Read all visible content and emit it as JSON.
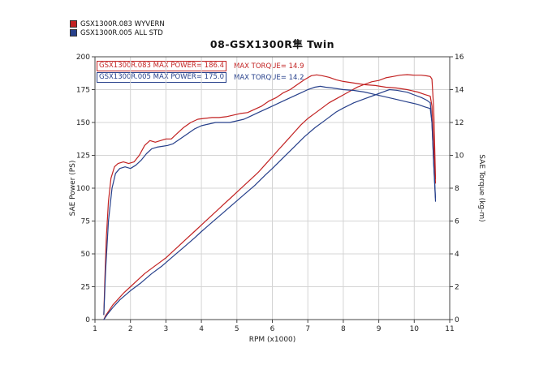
{
  "legend": {
    "position": "top-left",
    "items": [
      {
        "label": "GSX1300R.083  WYVERN",
        "color": "#c22222"
      },
      {
        "label": "GSX1300R.005  ALL STD",
        "color": "#27408b"
      }
    ]
  },
  "chart_data": {
    "type": "line",
    "title": "08-GSX1300R隼 Twin",
    "xlabel": "RPM (x1000)",
    "ylabel_left": "SAE Power (PS)",
    "ylabel_right": "SAE Torque (kg-m)",
    "xlim": [
      1,
      11
    ],
    "ylim_left": [
      0,
      200
    ],
    "ylim_right": [
      0,
      16
    ],
    "x_ticks": [
      1,
      2,
      3,
      4,
      5,
      6,
      7,
      8,
      9,
      10,
      11
    ],
    "y_ticks_left": [
      0,
      25,
      50,
      75,
      100,
      125,
      150,
      175,
      200
    ],
    "y_ticks_right": [
      0,
      2,
      4,
      6,
      8,
      10,
      12,
      14,
      16
    ],
    "grid": true,
    "annotations": [
      {
        "text": "GSX1300R.083  MAX POWER= 186.4",
        "color": "#c22222",
        "boxed": true
      },
      {
        "text": "MAX TORQUE= 14.9",
        "color": "#c22222",
        "boxed": false
      },
      {
        "text": "GSX1300R.005  MAX POWER= 175.0",
        "color": "#27408b",
        "boxed": true
      },
      {
        "text": "MAX TORQUE= 14.2",
        "color": "#27408b",
        "boxed": false
      }
    ],
    "series": [
      {
        "name": "GSX1300R.083 WYVERN Power (PS)",
        "axis": "left",
        "color": "#c22222",
        "max": 186.4,
        "points": [
          [
            1.25,
            0
          ],
          [
            1.3,
            3
          ],
          [
            1.4,
            7
          ],
          [
            1.5,
            11
          ],
          [
            1.6,
            14
          ],
          [
            1.8,
            20
          ],
          [
            2.0,
            25
          ],
          [
            2.2,
            30
          ],
          [
            2.4,
            35
          ],
          [
            2.6,
            39
          ],
          [
            2.8,
            43
          ],
          [
            3.0,
            47
          ],
          [
            3.2,
            52
          ],
          [
            3.4,
            57
          ],
          [
            3.6,
            62
          ],
          [
            3.8,
            67
          ],
          [
            4.0,
            72
          ],
          [
            4.2,
            77
          ],
          [
            4.4,
            82
          ],
          [
            4.6,
            87
          ],
          [
            4.8,
            92
          ],
          [
            5.0,
            97
          ],
          [
            5.2,
            102
          ],
          [
            5.4,
            107
          ],
          [
            5.6,
            112
          ],
          [
            5.8,
            118
          ],
          [
            6.0,
            124
          ],
          [
            6.2,
            130
          ],
          [
            6.4,
            136
          ],
          [
            6.6,
            142
          ],
          [
            6.8,
            148
          ],
          [
            7.0,
            153
          ],
          [
            7.2,
            157
          ],
          [
            7.4,
            161
          ],
          [
            7.6,
            165
          ],
          [
            7.8,
            168
          ],
          [
            8.0,
            171
          ],
          [
            8.2,
            174
          ],
          [
            8.4,
            177
          ],
          [
            8.6,
            179
          ],
          [
            8.8,
            181
          ],
          [
            9.0,
            182
          ],
          [
            9.2,
            184
          ],
          [
            9.4,
            185
          ],
          [
            9.6,
            186
          ],
          [
            9.8,
            186.4
          ],
          [
            10.0,
            186
          ],
          [
            10.2,
            186
          ],
          [
            10.35,
            185.5
          ],
          [
            10.45,
            185
          ],
          [
            10.5,
            183
          ],
          [
            10.55,
            160
          ],
          [
            10.6,
            107
          ]
        ]
      },
      {
        "name": "GSX1300R.005 ALL STD Power (PS)",
        "axis": "left",
        "color": "#27408b",
        "max": 175.0,
        "points": [
          [
            1.25,
            0
          ],
          [
            1.35,
            4
          ],
          [
            1.5,
            9
          ],
          [
            1.7,
            15
          ],
          [
            2.0,
            22
          ],
          [
            2.3,
            28
          ],
          [
            2.6,
            35
          ],
          [
            2.9,
            41
          ],
          [
            3.2,
            48
          ],
          [
            3.5,
            55
          ],
          [
            3.8,
            62
          ],
          [
            4.0,
            67
          ],
          [
            4.3,
            74
          ],
          [
            4.6,
            81
          ],
          [
            4.9,
            88
          ],
          [
            5.2,
            95
          ],
          [
            5.5,
            102
          ],
          [
            5.8,
            110
          ],
          [
            6.0,
            115
          ],
          [
            6.3,
            123
          ],
          [
            6.6,
            131
          ],
          [
            6.9,
            139
          ],
          [
            7.2,
            146
          ],
          [
            7.5,
            152
          ],
          [
            7.8,
            158
          ],
          [
            8.0,
            161
          ],
          [
            8.3,
            165
          ],
          [
            8.6,
            168
          ],
          [
            8.9,
            171
          ],
          [
            9.1,
            173
          ],
          [
            9.3,
            175
          ],
          [
            9.5,
            174.5
          ],
          [
            9.8,
            173
          ],
          [
            10.0,
            171
          ],
          [
            10.2,
            169
          ],
          [
            10.35,
            167
          ],
          [
            10.45,
            165
          ],
          [
            10.5,
            150
          ],
          [
            10.55,
            118
          ],
          [
            10.6,
            90
          ]
        ]
      },
      {
        "name": "GSX1300R.083 WYVERN Torque (kg-m)",
        "axis": "right",
        "color": "#c22222",
        "max": 14.9,
        "points": [
          [
            1.25,
            0.3
          ],
          [
            1.28,
            2.5
          ],
          [
            1.32,
            5.0
          ],
          [
            1.38,
            7.2
          ],
          [
            1.45,
            8.6
          ],
          [
            1.55,
            9.3
          ],
          [
            1.65,
            9.5
          ],
          [
            1.8,
            9.6
          ],
          [
            1.95,
            9.5
          ],
          [
            2.1,
            9.6
          ],
          [
            2.25,
            10.0
          ],
          [
            2.4,
            10.6
          ],
          [
            2.55,
            10.9
          ],
          [
            2.7,
            10.8
          ],
          [
            2.85,
            10.9
          ],
          [
            3.0,
            11.0
          ],
          [
            3.15,
            11.0
          ],
          [
            3.3,
            11.3
          ],
          [
            3.5,
            11.7
          ],
          [
            3.7,
            12.0
          ],
          [
            3.9,
            12.2
          ],
          [
            4.1,
            12.25
          ],
          [
            4.3,
            12.3
          ],
          [
            4.5,
            12.3
          ],
          [
            4.7,
            12.35
          ],
          [
            4.9,
            12.45
          ],
          [
            5.1,
            12.55
          ],
          [
            5.3,
            12.6
          ],
          [
            5.5,
            12.8
          ],
          [
            5.7,
            13.0
          ],
          [
            5.9,
            13.3
          ],
          [
            6.1,
            13.5
          ],
          [
            6.3,
            13.8
          ],
          [
            6.5,
            14.0
          ],
          [
            6.7,
            14.3
          ],
          [
            6.9,
            14.6
          ],
          [
            7.1,
            14.85
          ],
          [
            7.25,
            14.9
          ],
          [
            7.4,
            14.85
          ],
          [
            7.6,
            14.75
          ],
          [
            7.8,
            14.6
          ],
          [
            8.0,
            14.5
          ],
          [
            8.3,
            14.4
          ],
          [
            8.6,
            14.3
          ],
          [
            8.9,
            14.25
          ],
          [
            9.2,
            14.15
          ],
          [
            9.5,
            14.1
          ],
          [
            9.8,
            14.0
          ],
          [
            10.1,
            13.85
          ],
          [
            10.3,
            13.7
          ],
          [
            10.45,
            13.6
          ],
          [
            10.5,
            13.0
          ],
          [
            10.55,
            10.5
          ],
          [
            10.6,
            8.3
          ]
        ]
      },
      {
        "name": "GSX1300R.005 ALL STD Torque (kg-m)",
        "axis": "right",
        "color": "#27408b",
        "max": 14.2,
        "points": [
          [
            1.25,
            0.3
          ],
          [
            1.3,
            3.0
          ],
          [
            1.38,
            6.0
          ],
          [
            1.48,
            8.0
          ],
          [
            1.58,
            8.9
          ],
          [
            1.7,
            9.2
          ],
          [
            1.85,
            9.3
          ],
          [
            2.0,
            9.2
          ],
          [
            2.15,
            9.4
          ],
          [
            2.3,
            9.7
          ],
          [
            2.45,
            10.1
          ],
          [
            2.6,
            10.4
          ],
          [
            2.75,
            10.5
          ],
          [
            2.9,
            10.55
          ],
          [
            3.05,
            10.6
          ],
          [
            3.2,
            10.7
          ],
          [
            3.4,
            11.0
          ],
          [
            3.6,
            11.3
          ],
          [
            3.8,
            11.6
          ],
          [
            4.0,
            11.8
          ],
          [
            4.2,
            11.9
          ],
          [
            4.4,
            12.0
          ],
          [
            4.6,
            12.0
          ],
          [
            4.8,
            12.0
          ],
          [
            5.0,
            12.1
          ],
          [
            5.2,
            12.2
          ],
          [
            5.4,
            12.4
          ],
          [
            5.6,
            12.6
          ],
          [
            5.8,
            12.8
          ],
          [
            6.0,
            13.0
          ],
          [
            6.2,
            13.2
          ],
          [
            6.5,
            13.5
          ],
          [
            6.8,
            13.8
          ],
          [
            7.0,
            14.0
          ],
          [
            7.2,
            14.15
          ],
          [
            7.35,
            14.2
          ],
          [
            7.5,
            14.15
          ],
          [
            7.7,
            14.1
          ],
          [
            8.0,
            14.0
          ],
          [
            8.3,
            13.95
          ],
          [
            8.6,
            13.85
          ],
          [
            8.9,
            13.7
          ],
          [
            9.2,
            13.55
          ],
          [
            9.5,
            13.4
          ],
          [
            9.8,
            13.25
          ],
          [
            10.1,
            13.1
          ],
          [
            10.3,
            12.95
          ],
          [
            10.45,
            12.85
          ],
          [
            10.5,
            12.0
          ],
          [
            10.55,
            9.5
          ],
          [
            10.6,
            7.4
          ]
        ]
      }
    ]
  }
}
